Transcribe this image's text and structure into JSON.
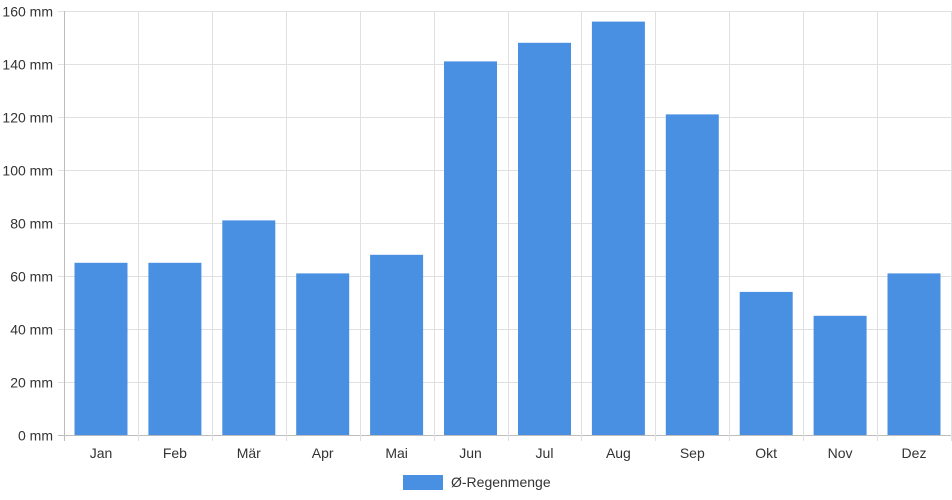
{
  "chart_data": {
    "type": "bar",
    "categories": [
      "Jan",
      "Feb",
      "Mär",
      "Apr",
      "Mai",
      "Jun",
      "Jul",
      "Aug",
      "Sep",
      "Okt",
      "Nov",
      "Dez"
    ],
    "series": [
      {
        "name": "Ø-Regenmenge",
        "values": [
          65,
          65,
          81,
          61,
          68,
          141,
          148,
          156,
          121,
          54,
          45,
          61
        ]
      }
    ],
    "y_ticks": [
      "0 mm",
      "20 mm",
      "40 mm",
      "60 mm",
      "80 mm",
      "100 mm",
      "120 mm",
      "140 mm",
      "160 mm"
    ],
    "ylim": [
      0,
      160
    ],
    "y_tick_step": 20,
    "grid": true,
    "legend_position": "bottom-center",
    "bar_color": "#4a90e2",
    "grid_color": "#e0e0e0",
    "axis_color": "#bdbdbd"
  }
}
